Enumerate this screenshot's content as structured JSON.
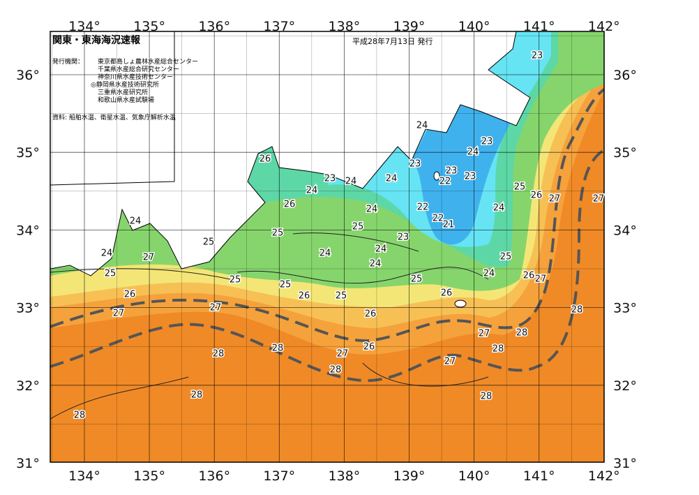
{
  "header": {
    "title": "関東・東海海況速報",
    "issue_date": "平成28年7月13日 発行",
    "issuers_label": "発行機関：",
    "issuers": [
      "東京都島しょ農林水産総合センター",
      "千葉県水産総合研究センター",
      "神奈川県水産技術センター",
      "◎静岡県水産技術研究所",
      "三重県水産研究所",
      "和歌山県水産試験場"
    ],
    "source": "資料: 船舶水温、衛星水温、気象庁解析水温"
  },
  "map": {
    "lon_labels": [
      "134°",
      "135°",
      "136°",
      "137°",
      "138°",
      "139°",
      "140°",
      "141°",
      "142°"
    ],
    "lat_labels": [
      "36°",
      "35°",
      "34°",
      "33°",
      "32°",
      "31°"
    ],
    "contour_labels": [
      "23",
      "24",
      "23",
      "24",
      "23",
      "23",
      "22",
      "23",
      "25",
      "26",
      "27",
      "27",
      "24",
      "22",
      "22",
      "21",
      "23",
      "24",
      "24",
      "25",
      "24",
      "24",
      "24",
      "23",
      "24",
      "26",
      "26",
      "25",
      "24",
      "25",
      "24",
      "24",
      "25",
      "27",
      "26",
      "27",
      "25",
      "25",
      "26",
      "25",
      "26",
      "25",
      "26",
      "24",
      "25",
      "26",
      "27",
      "28",
      "27",
      "28",
      "28",
      "27",
      "26",
      "28",
      "27",
      "28",
      "28",
      "27",
      "28",
      "28",
      "28"
    ]
  }
}
